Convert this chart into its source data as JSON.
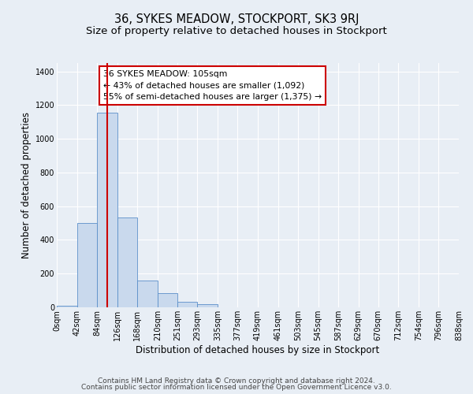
{
  "title": "36, SYKES MEADOW, STOCKPORT, SK3 9RJ",
  "subtitle": "Size of property relative to detached houses in Stockport",
  "xlabel": "Distribution of detached houses by size in Stockport",
  "ylabel": "Number of detached properties",
  "bar_values": [
    10,
    500,
    1155,
    535,
    160,
    85,
    35,
    20,
    0,
    0,
    0,
    0,
    0,
    0,
    0,
    0,
    0,
    0,
    0,
    0
  ],
  "bin_edges": [
    0,
    42,
    84,
    126,
    168,
    210,
    251,
    293,
    335,
    377,
    419,
    461,
    503,
    545,
    587,
    629,
    670,
    712,
    754,
    796,
    838
  ],
  "tick_labels": [
    "0sqm",
    "42sqm",
    "84sqm",
    "126sqm",
    "168sqm",
    "210sqm",
    "251sqm",
    "293sqm",
    "335sqm",
    "377sqm",
    "419sqm",
    "461sqm",
    "503sqm",
    "545sqm",
    "587sqm",
    "629sqm",
    "670sqm",
    "712sqm",
    "754sqm",
    "796sqm",
    "838sqm"
  ],
  "bar_color": "#c9d9ed",
  "bar_edge_color": "#5b8fc9",
  "property_line_x": 105,
  "property_line_color": "#cc0000",
  "ylim": [
    0,
    1450
  ],
  "yticks": [
    0,
    200,
    400,
    600,
    800,
    1000,
    1200,
    1400
  ],
  "annotation_text": "36 SYKES MEADOW: 105sqm\n← 43% of detached houses are smaller (1,092)\n55% of semi-detached houses are larger (1,375) →",
  "annotation_box_color": "#ffffff",
  "annotation_box_edge_color": "#cc0000",
  "footer_line1": "Contains HM Land Registry data © Crown copyright and database right 2024.",
  "footer_line2": "Contains public sector information licensed under the Open Government Licence v3.0.",
  "background_color": "#e8eef5",
  "plot_bg_color": "#e8eef5",
  "grid_color": "#ffffff",
  "title_fontsize": 10.5,
  "subtitle_fontsize": 9.5,
  "axis_label_fontsize": 8.5,
  "tick_fontsize": 7,
  "annotation_fontsize": 7.8,
  "footer_fontsize": 6.5
}
